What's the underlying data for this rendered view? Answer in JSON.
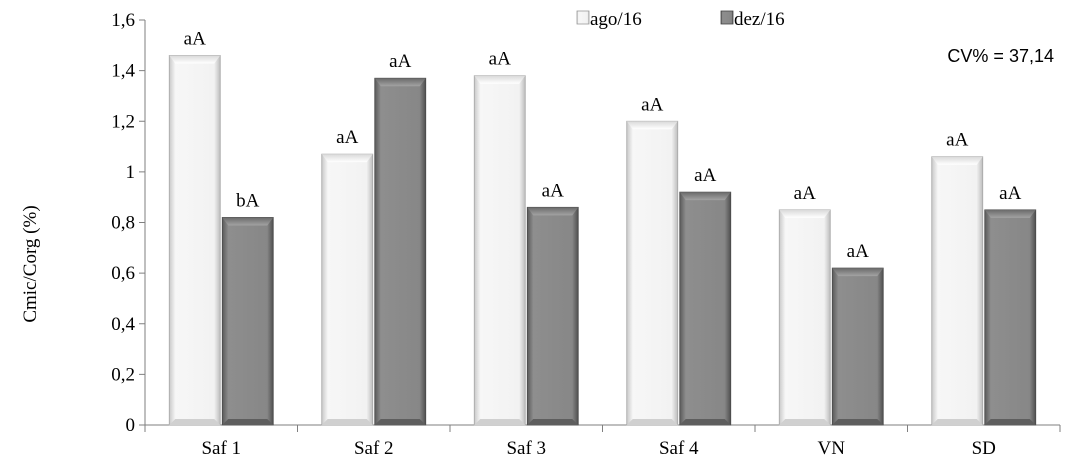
{
  "chart_data": {
    "type": "bar",
    "ylabel": "Cmic/Corg (%)",
    "xlabel": "",
    "categories": [
      "Saf 1",
      "Saf 2",
      "Saf 3",
      "Saf 4",
      "VN",
      "SD"
    ],
    "ylim": [
      0,
      1.6
    ],
    "ytick_step": 0.2,
    "yticks": [
      "0",
      "0,2",
      "0,4",
      "0,6",
      "0,8",
      "1",
      "1,2",
      "1,4",
      "1,6"
    ],
    "grid": false,
    "legend_position": "top",
    "annotation": "CV% = 37,14",
    "series": [
      {
        "name": "ago/16",
        "color": "#e6e6e6",
        "values": [
          1.46,
          1.07,
          1.38,
          1.2,
          0.85,
          1.06
        ],
        "labels": [
          "aA",
          "aA",
          "aA",
          "aA",
          "aA",
          "aA"
        ]
      },
      {
        "name": "dez/16",
        "color": "#7f7f7f",
        "values": [
          0.82,
          1.37,
          0.86,
          0.92,
          0.62,
          0.85
        ],
        "labels": [
          "bA",
          "aA",
          "aA",
          "aA",
          "aA",
          "aA"
        ]
      }
    ]
  }
}
